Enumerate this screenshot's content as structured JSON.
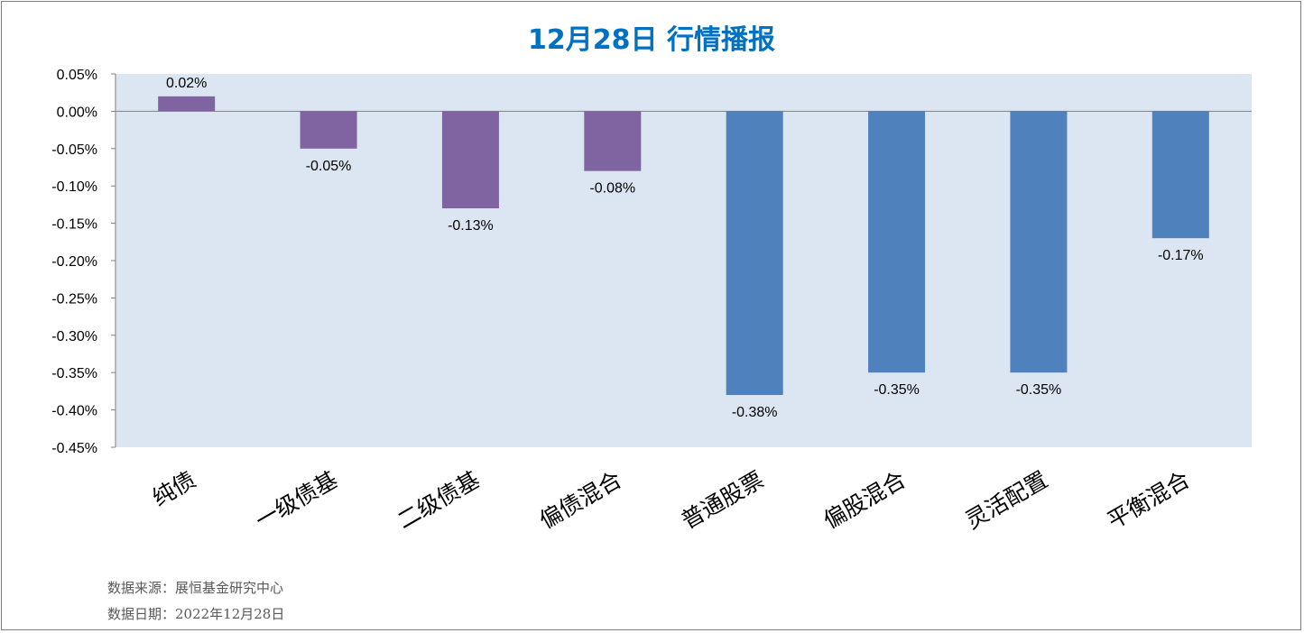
{
  "chart_data": {
    "type": "bar",
    "title": "12月28日  行情播报",
    "categories": [
      "纯债",
      "一级债基",
      "二级债基",
      "偏债混合",
      "普通股票",
      "偏股混合",
      "灵活配置",
      "平衡混合"
    ],
    "values": [
      0.02,
      -0.05,
      -0.13,
      -0.08,
      -0.38,
      -0.35,
      -0.35,
      -0.17
    ],
    "data_labels": [
      "0.02%",
      "-0.05%",
      "-0.13%",
      "-0.08%",
      "-0.38%",
      "-0.35%",
      "-0.35%",
      "-0.17%"
    ],
    "bar_colors": [
      "#8064a2",
      "#8064a2",
      "#8064a2",
      "#8064a2",
      "#4f81bd",
      "#4f81bd",
      "#4f81bd",
      "#4f81bd"
    ],
    "ylim": [
      -0.45,
      0.05
    ],
    "ytick_values": [
      0.05,
      0.0,
      -0.05,
      -0.1,
      -0.15,
      -0.2,
      -0.25,
      -0.3,
      -0.35,
      -0.4,
      -0.45
    ],
    "ytick_labels": [
      "0.05%",
      "0.00%",
      "-0.05%",
      "-0.10%",
      "-0.15%",
      "-0.20%",
      "-0.25%",
      "-0.30%",
      "-0.35%",
      "-0.40%",
      "-0.45%"
    ],
    "plot_background": "#dce6f2",
    "grid": false,
    "legend": "none"
  },
  "source": {
    "line1": "数据来源：展恒基金研究中心",
    "line2": "数据日期：2022年12月28日"
  },
  "colors": {
    "title": "#0070c0",
    "border": "#7f7f7f"
  }
}
